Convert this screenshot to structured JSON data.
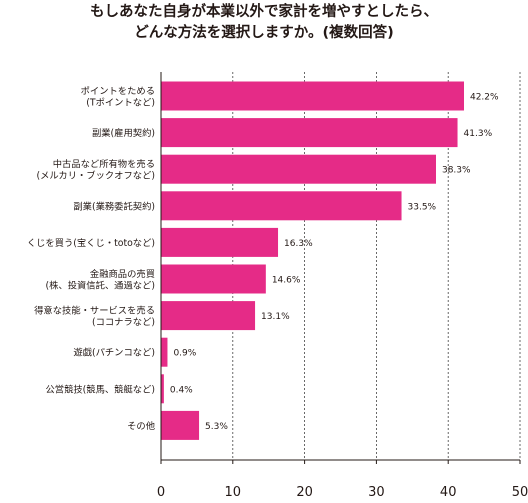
{
  "chart_data": {
    "type": "bar",
    "orientation": "horizontal",
    "title_lines": [
      "もしあなた自身が本業以外で家計を増やすとしたら、",
      "どんな方法を選択しますか。(複数回答)"
    ],
    "categories": [
      [
        "ポイントをためる",
        "(Tポイントなど)"
      ],
      [
        "副業(雇用契約)"
      ],
      [
        "中古品など所有物を売る",
        "(メルカリ・ブックオフなど)"
      ],
      [
        "副業(業務委託契約)"
      ],
      [
        "くじを買う(宝くじ・totoなど)"
      ],
      [
        "金融商品の売買",
        "(株、投資信託、通過など)"
      ],
      [
        "得意な技能・サービスを売る",
        "(ココナラなど)"
      ],
      [
        "遊戯(パチンコなど)"
      ],
      [
        "公営競技(競馬、競艇など)"
      ],
      [
        "その他"
      ]
    ],
    "values": [
      42.2,
      41.3,
      38.3,
      33.5,
      16.3,
      14.6,
      13.1,
      0.9,
      0.4,
      5.3
    ],
    "value_labels": [
      "42.2%",
      "41.3%",
      "38.3%",
      "33.5%",
      "16.3%",
      "14.6%",
      "13.1%",
      "0.9%",
      "0.4%",
      "5.3%"
    ],
    "xlim": [
      0,
      50
    ],
    "xticks": [
      0,
      10,
      20,
      30,
      40,
      50
    ],
    "grid": true,
    "bar_color": "#E52B87",
    "grid_color": "#444444"
  }
}
